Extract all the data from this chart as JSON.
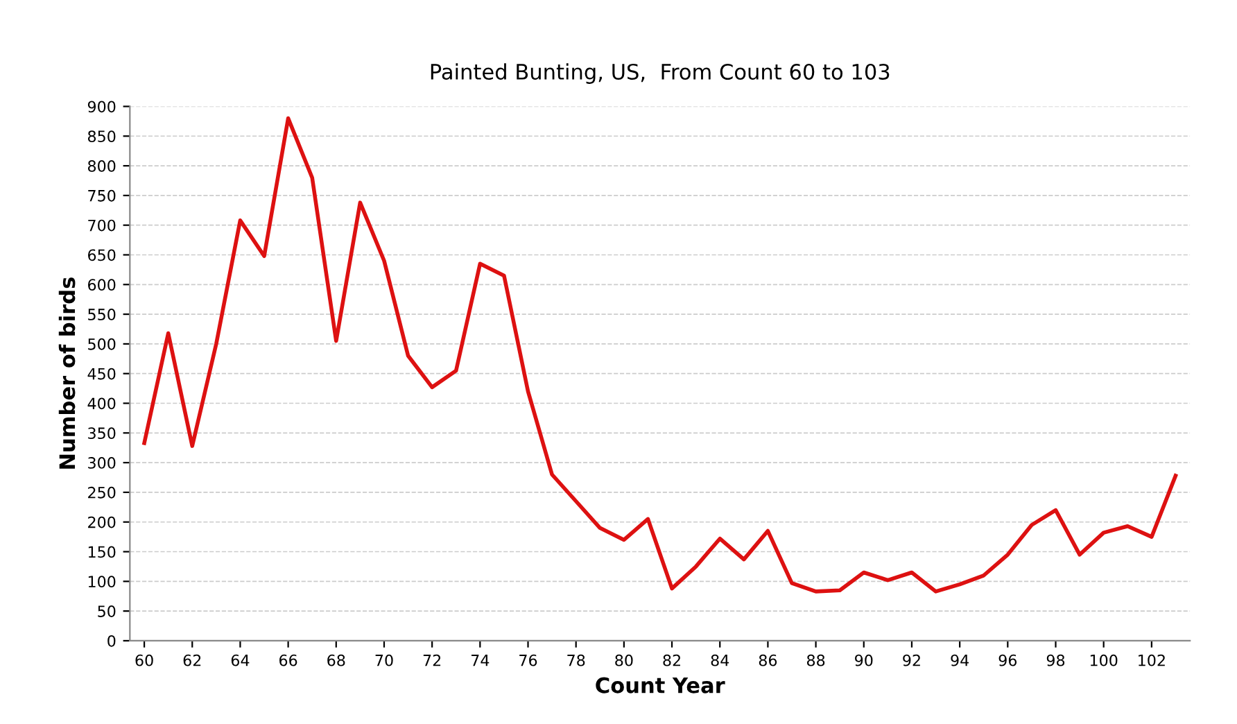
{
  "chart_data": {
    "type": "line",
    "title": "Painted Bunting, US,  From Count 60 to 103",
    "xlabel": "Count Year",
    "ylabel": "Number of birds",
    "x": [
      60,
      61,
      62,
      63,
      64,
      65,
      66,
      67,
      68,
      69,
      70,
      71,
      72,
      73,
      74,
      75,
      76,
      77,
      78,
      79,
      80,
      81,
      82,
      83,
      84,
      85,
      86,
      87,
      88,
      89,
      90,
      91,
      92,
      93,
      94,
      95,
      96,
      97,
      98,
      99,
      100,
      101,
      102,
      103
    ],
    "series": [
      {
        "color": "#dd1111",
        "values": [
          333,
          518,
          328,
          500,
          708,
          648,
          880,
          780,
          505,
          738,
          640,
          480,
          427,
          455,
          635,
          615,
          420,
          280,
          235,
          190,
          170,
          205,
          88,
          125,
          172,
          137,
          185,
          97,
          83,
          85,
          115,
          102,
          115,
          83,
          95,
          110,
          145,
          195,
          220,
          145,
          182,
          193,
          175,
          278
        ]
      }
    ],
    "xlim": [
      59.4,
      103.6
    ],
    "xticks": [
      60,
      62,
      64,
      66,
      68,
      70,
      72,
      74,
      76,
      78,
      80,
      82,
      84,
      86,
      88,
      90,
      92,
      94,
      96,
      98,
      100,
      102
    ],
    "ylim": [
      0,
      900
    ],
    "yticks": [
      0,
      50,
      100,
      150,
      200,
      250,
      300,
      350,
      400,
      450,
      500,
      550,
      600,
      650,
      700,
      750,
      800,
      850,
      900
    ],
    "grid": "y",
    "marker": "none",
    "line_style": "solid"
  }
}
